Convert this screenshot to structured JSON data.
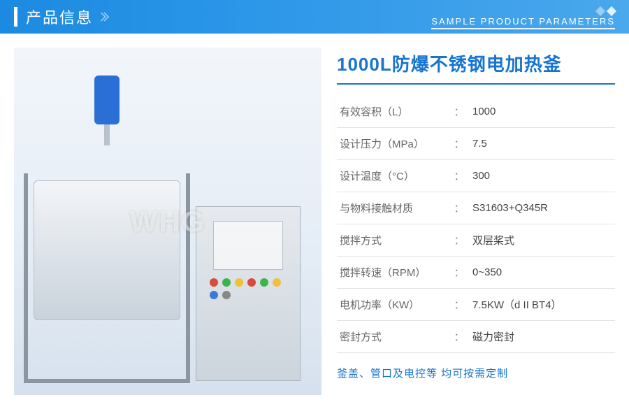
{
  "header": {
    "title_cn": "产品信息",
    "title_en": "SAMPLE PRODUCT PARAMETERS"
  },
  "product": {
    "title": "1000L防爆不锈钢电加热釜",
    "watermark": "WHG",
    "specs": [
      {
        "label": "有效容积（L）",
        "value": "1000"
      },
      {
        "label": "设计压力（MPa）",
        "value": "7.5"
      },
      {
        "label": "设计温度（°C）",
        "value": "300"
      },
      {
        "label": "与物料接触材质",
        "value": "S31603+Q345R"
      },
      {
        "label": "搅拌方式",
        "value": "双层桨式"
      },
      {
        "label": "搅拌转速（RPM）",
        "value": "0~350"
      },
      {
        "label": "电机功率（KW）",
        "value": "7.5KW（d II BT4）"
      },
      {
        "label": "密封方式",
        "value": "磁力密封"
      }
    ],
    "note": "釜盖、管口及电控等 均可按需定制",
    "colors": {
      "accent": "#1775cf",
      "header_grad_from": "#1b8ae0",
      "header_grad_to": "#4aa8ec",
      "text": "#555",
      "divider": "#e3e3e3",
      "cabinet_btns": [
        "#d94b3a",
        "#3ab54a",
        "#f2c037",
        "#d94b3a",
        "#3ab54a",
        "#f2c037",
        "#3a7bd9",
        "#888"
      ]
    }
  }
}
